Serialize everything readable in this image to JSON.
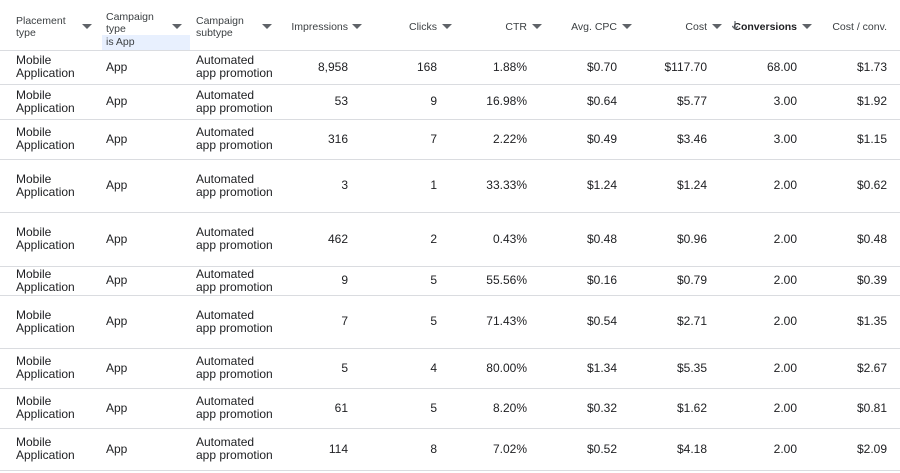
{
  "table": {
    "columns": [
      "Placement type",
      "Campaign type",
      "Campaign subtype",
      "Impressions",
      "Clicks",
      "CTR",
      "Avg. CPC",
      "Cost",
      "Conversions",
      "Cost / conv."
    ],
    "filter": "is App",
    "rows": [
      [
        "Mobile Application",
        "App",
        "Automated app promotion",
        "8,958",
        "168",
        "1.88%",
        "$0.70",
        "$117.70",
        "68.00",
        "$1.73"
      ],
      [
        "Mobile Application",
        "App",
        "Automated app promotion",
        "53",
        "9",
        "16.98%",
        "$0.64",
        "$5.77",
        "3.00",
        "$1.92"
      ],
      [
        "Mobile Application",
        "App",
        "Automated app promotion",
        "316",
        "7",
        "2.22%",
        "$0.49",
        "$3.46",
        "3.00",
        "$1.15"
      ],
      [
        "Mobile Application",
        "App",
        "Automated app promotion",
        "3",
        "1",
        "33.33%",
        "$1.24",
        "$1.24",
        "2.00",
        "$0.62"
      ],
      [
        "Mobile Application",
        "App",
        "Automated app promotion",
        "462",
        "2",
        "0.43%",
        "$0.48",
        "$0.96",
        "2.00",
        "$0.48"
      ],
      [
        "Mobile Application",
        "App",
        "Automated app promotion",
        "9",
        "5",
        "55.56%",
        "$0.16",
        "$0.79",
        "2.00",
        "$0.39"
      ],
      [
        "Mobile Application",
        "App",
        "Automated app promotion",
        "7",
        "5",
        "71.43%",
        "$0.54",
        "$2.71",
        "2.00",
        "$1.35"
      ],
      [
        "Mobile Application",
        "App",
        "Automated app promotion",
        "5",
        "4",
        "80.00%",
        "$1.34",
        "$5.35",
        "2.00",
        "$2.67"
      ],
      [
        "Mobile Application",
        "App",
        "Automated app promotion",
        "61",
        "5",
        "8.20%",
        "$0.32",
        "$1.62",
        "2.00",
        "$0.81"
      ],
      [
        "Mobile Application",
        "App",
        "Automated app promotion",
        "114",
        "8",
        "7.02%",
        "$0.52",
        "$4.18",
        "2.00",
        "$2.09"
      ]
    ]
  }
}
